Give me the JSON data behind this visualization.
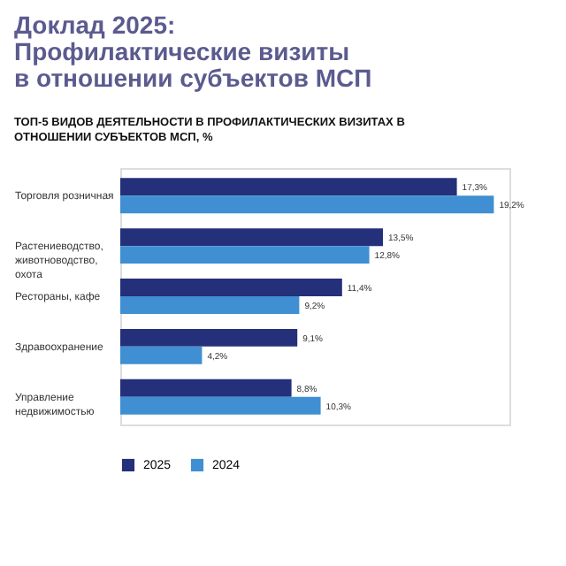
{
  "chart_data": {
    "type": "bar",
    "orientation": "horizontal",
    "title": "Доклад 2025:\nПрофилактические визиты\nв отношении субъектов МСП",
    "subtitle": "ТОП-5 ВИДОВ ДЕЯТЕЛЬНОСТИ В ПРОФИЛАКТИЧЕСКИХ ВИЗИТАХ В ОТНОШЕНИИ СУБЪЕКТОВ МСП, %",
    "categories": [
      "Торговля розничная",
      "Растениеводство, животноводство, охота",
      "Рестораны, кафе",
      "Здравоохранение",
      "Управление недвижимостью"
    ],
    "series": [
      {
        "name": "2025",
        "color": "#24307a",
        "values": [
          17.3,
          13.5,
          11.4,
          9.1,
          8.8
        ],
        "value_labels": [
          "17,3%",
          "13,5%",
          "11,4%",
          "9,1%",
          "8,8%"
        ]
      },
      {
        "name": "2024",
        "color": "#3f8fd2",
        "values": [
          19.2,
          12.8,
          9.2,
          4.2,
          10.3
        ],
        "value_labels": [
          "19,2%",
          "12,8%",
          "9,2%",
          "4,2%",
          "10,3%"
        ]
      }
    ],
    "legend": "bottom"
  }
}
